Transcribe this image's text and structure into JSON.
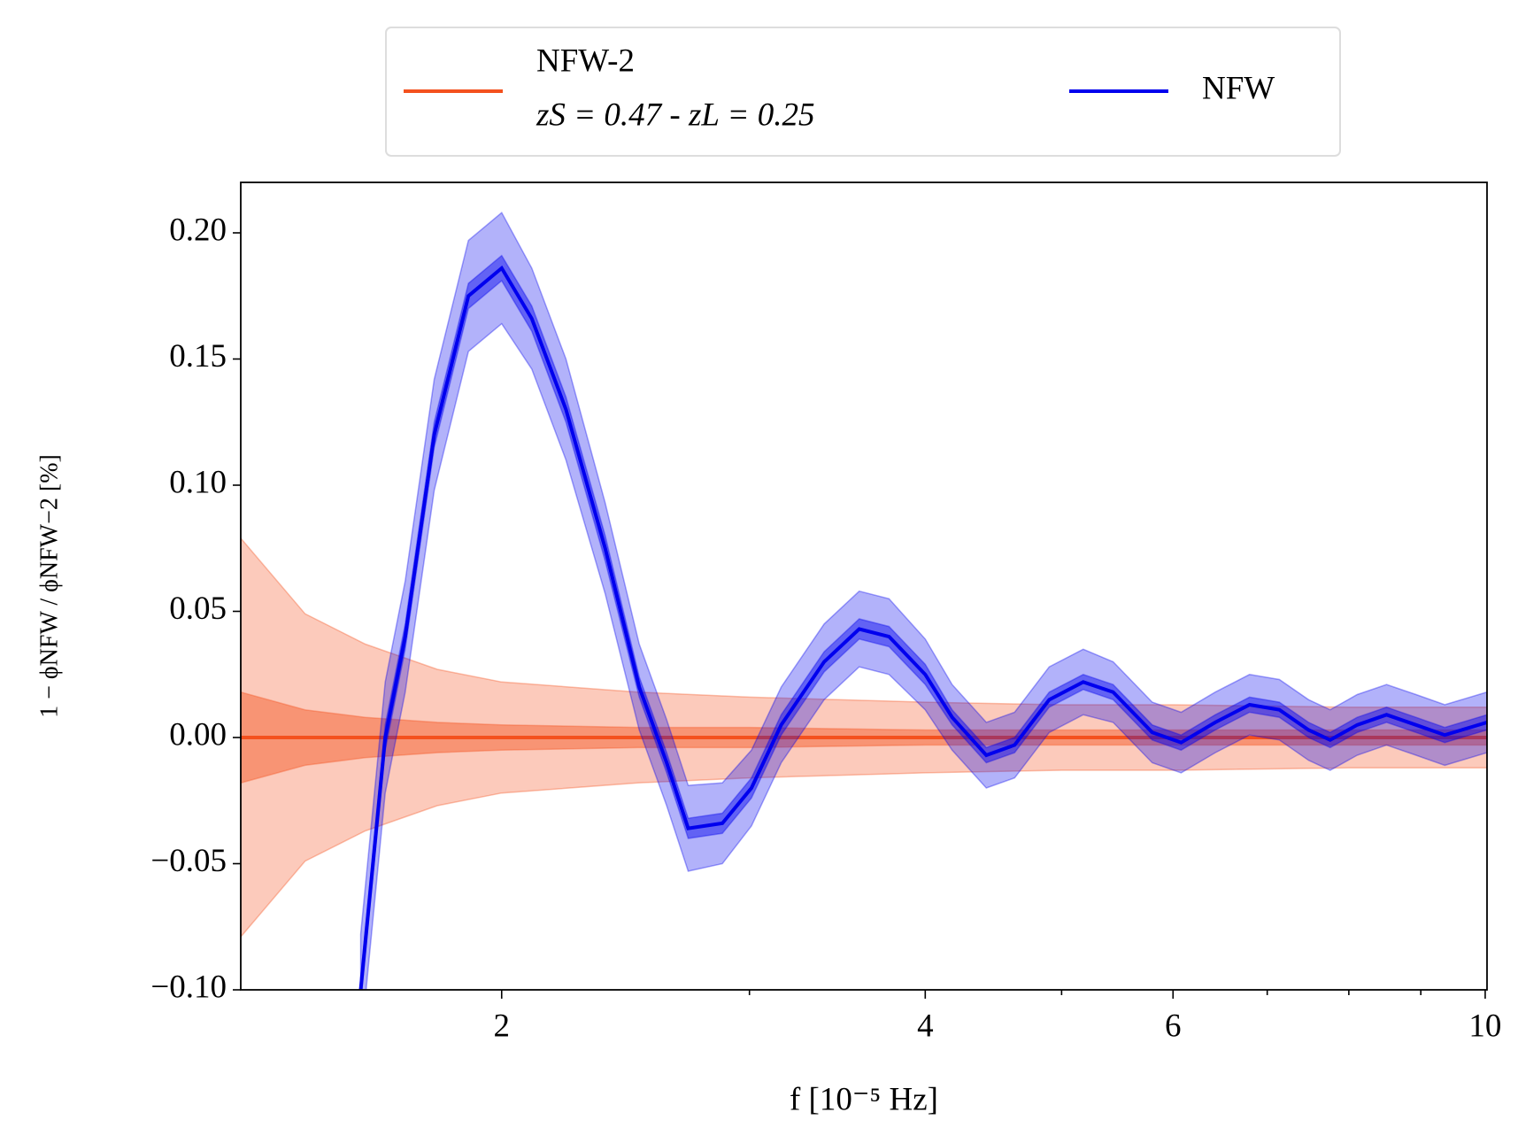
{
  "chart_data": {
    "type": "line",
    "log_x": true,
    "x_label": "f  [10⁻⁵ Hz]",
    "y_label": "1 − ϕNFW / ϕNFW−2  [%]",
    "xlim": [
      1.305,
      10.03
    ],
    "ylim": [
      -0.1,
      0.22
    ],
    "xticks": [
      2,
      4,
      6,
      10
    ],
    "xminorticks": [
      3,
      5,
      7,
      8,
      9
    ],
    "yticks": [
      {
        "value": -0.1,
        "label": "−0.10"
      },
      {
        "value": -0.05,
        "label": "−0.05"
      },
      {
        "value": 0,
        "label": "0.00"
      },
      {
        "value": 0.05,
        "label": "0.05"
      },
      {
        "value": 0.1,
        "label": "0.10"
      },
      {
        "value": 0.15,
        "label": "0.15"
      },
      {
        "value": 0.2,
        "label": "0.20"
      }
    ],
    "series": [
      {
        "name": "NFW-2",
        "legend_note": "zS = 0.47 - zL = 0.25",
        "color": "#f4511e",
        "x": [
          1.305,
          1.45,
          1.6,
          1.8,
          2,
          2.5,
          3,
          4,
          5,
          6,
          8,
          10.03
        ],
        "values": [
          0,
          0,
          0,
          0,
          0,
          0,
          0,
          0,
          0,
          0,
          0,
          0
        ],
        "inner": [
          0.018,
          0.011,
          0.008,
          0.006,
          0.005,
          0.004,
          0.004,
          0.003,
          0.003,
          0.003,
          0.003,
          0.003
        ],
        "outer": [
          0.079,
          0.049,
          0.037,
          0.027,
          0.022,
          0.018,
          0.016,
          0.014,
          0.013,
          0.013,
          0.012,
          0.012
        ]
      },
      {
        "name": "NFW",
        "color": "#0000ee",
        "x": [
          1.588,
          1.653,
          1.708,
          1.791,
          1.894,
          2.0,
          2.101,
          2.222,
          2.369,
          2.505,
          2.62,
          2.714,
          2.87,
          3.01,
          3.16,
          3.39,
          3.59,
          3.77,
          4.0,
          4.18,
          4.42,
          4.63,
          4.9,
          5.18,
          5.44,
          5.8,
          6.08,
          6.43,
          6.8,
          7.14,
          7.49,
          7.76,
          8.11,
          8.51,
          8.93,
          9.36,
          10.03
        ],
        "values": [
          -0.1,
          0.0,
          0.04,
          0.12,
          0.175,
          0.186,
          0.166,
          0.13,
          0.075,
          0.02,
          -0.01,
          -0.036,
          -0.034,
          -0.02,
          0.005,
          0.03,
          0.043,
          0.04,
          0.025,
          0.008,
          -0.007,
          -0.003,
          0.015,
          0.022,
          0.018,
          0.002,
          -0.002,
          0.006,
          0.013,
          0.011,
          0.003,
          -0.001,
          0.005,
          0.009,
          0.005,
          0.001,
          0.006
        ],
        "inner": [
          0.005,
          0.005,
          0.005,
          0.005,
          0.005,
          0.005,
          0.005,
          0.005,
          0.005,
          0.004,
          0.004,
          0.004,
          0.004,
          0.004,
          0.004,
          0.004,
          0.004,
          0.004,
          0.004,
          0.003,
          0.003,
          0.003,
          0.003,
          0.003,
          0.003,
          0.003,
          0.003,
          0.003,
          0.003,
          0.003,
          0.003,
          0.003,
          0.003,
          0.003,
          0.003,
          0.003,
          0.003
        ],
        "outer": [
          0.022,
          0.022,
          0.022,
          0.022,
          0.022,
          0.022,
          0.02,
          0.02,
          0.018,
          0.017,
          0.017,
          0.017,
          0.016,
          0.015,
          0.015,
          0.015,
          0.015,
          0.015,
          0.014,
          0.013,
          0.013,
          0.013,
          0.013,
          0.013,
          0.012,
          0.012,
          0.012,
          0.012,
          0.012,
          0.012,
          0.012,
          0.012,
          0.012,
          0.012,
          0.012,
          0.012,
          0.012
        ]
      }
    ]
  }
}
